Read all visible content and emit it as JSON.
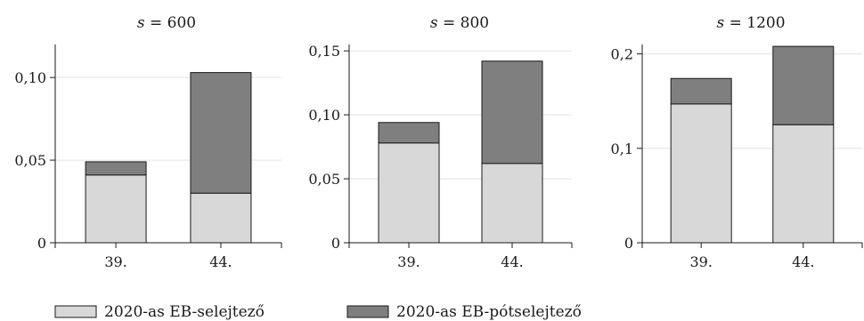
{
  "colors": {
    "series_lower": "#d8d8d8",
    "series_upper": "#7f7f7f",
    "axis": "#1a1a1a",
    "grid": "#e2e2e2"
  },
  "legend": {
    "placement": "bottom",
    "items": [
      {
        "label": "2020-as EB-selejtező",
        "series": "lower"
      },
      {
        "label": "2020-as EB-pótselejtező",
        "series": "upper"
      }
    ]
  },
  "chart_data": [
    {
      "type": "bar",
      "stacked": true,
      "title": "s = 600",
      "title_var": "s",
      "title_rest": " = 600",
      "categories": [
        "39.",
        "44."
      ],
      "series": [
        {
          "name": "2020-as EB-selejtező",
          "values": [
            0.041,
            0.03
          ]
        },
        {
          "name": "2020-as EB-pótselejtező",
          "values": [
            0.008,
            0.073
          ]
        }
      ],
      "ylim": [
        0,
        0.12
      ],
      "yticks": [
        0,
        0.05,
        0.1
      ],
      "ytick_labels": [
        "0",
        "0,05",
        "0,10"
      ],
      "grid": true
    },
    {
      "type": "bar",
      "stacked": true,
      "title": "s = 800",
      "title_var": "s",
      "title_rest": " = 800",
      "categories": [
        "39.",
        "44."
      ],
      "series": [
        {
          "name": "2020-as EB-selejtező",
          "values": [
            0.078,
            0.062
          ]
        },
        {
          "name": "2020-as EB-pótselejtező",
          "values": [
            0.016,
            0.08
          ]
        }
      ],
      "ylim": [
        0,
        0.155
      ],
      "yticks": [
        0,
        0.05,
        0.1,
        0.15
      ],
      "ytick_labels": [
        "0",
        "0,05",
        "0,10",
        "0,15"
      ],
      "grid": true
    },
    {
      "type": "bar",
      "stacked": true,
      "title": "s = 1200",
      "title_var": "s",
      "title_rest": " = 1200",
      "categories": [
        "39.",
        "44."
      ],
      "series": [
        {
          "name": "2020-as EB-selejtező",
          "values": [
            0.147,
            0.125
          ]
        },
        {
          "name": "2020-as EB-pótselejtező",
          "values": [
            0.027,
            0.083
          ]
        }
      ],
      "ylim": [
        0,
        0.21
      ],
      "yticks": [
        0,
        0.1,
        0.2
      ],
      "ytick_labels": [
        "0",
        "0,1",
        "0,2"
      ],
      "grid": true
    }
  ]
}
